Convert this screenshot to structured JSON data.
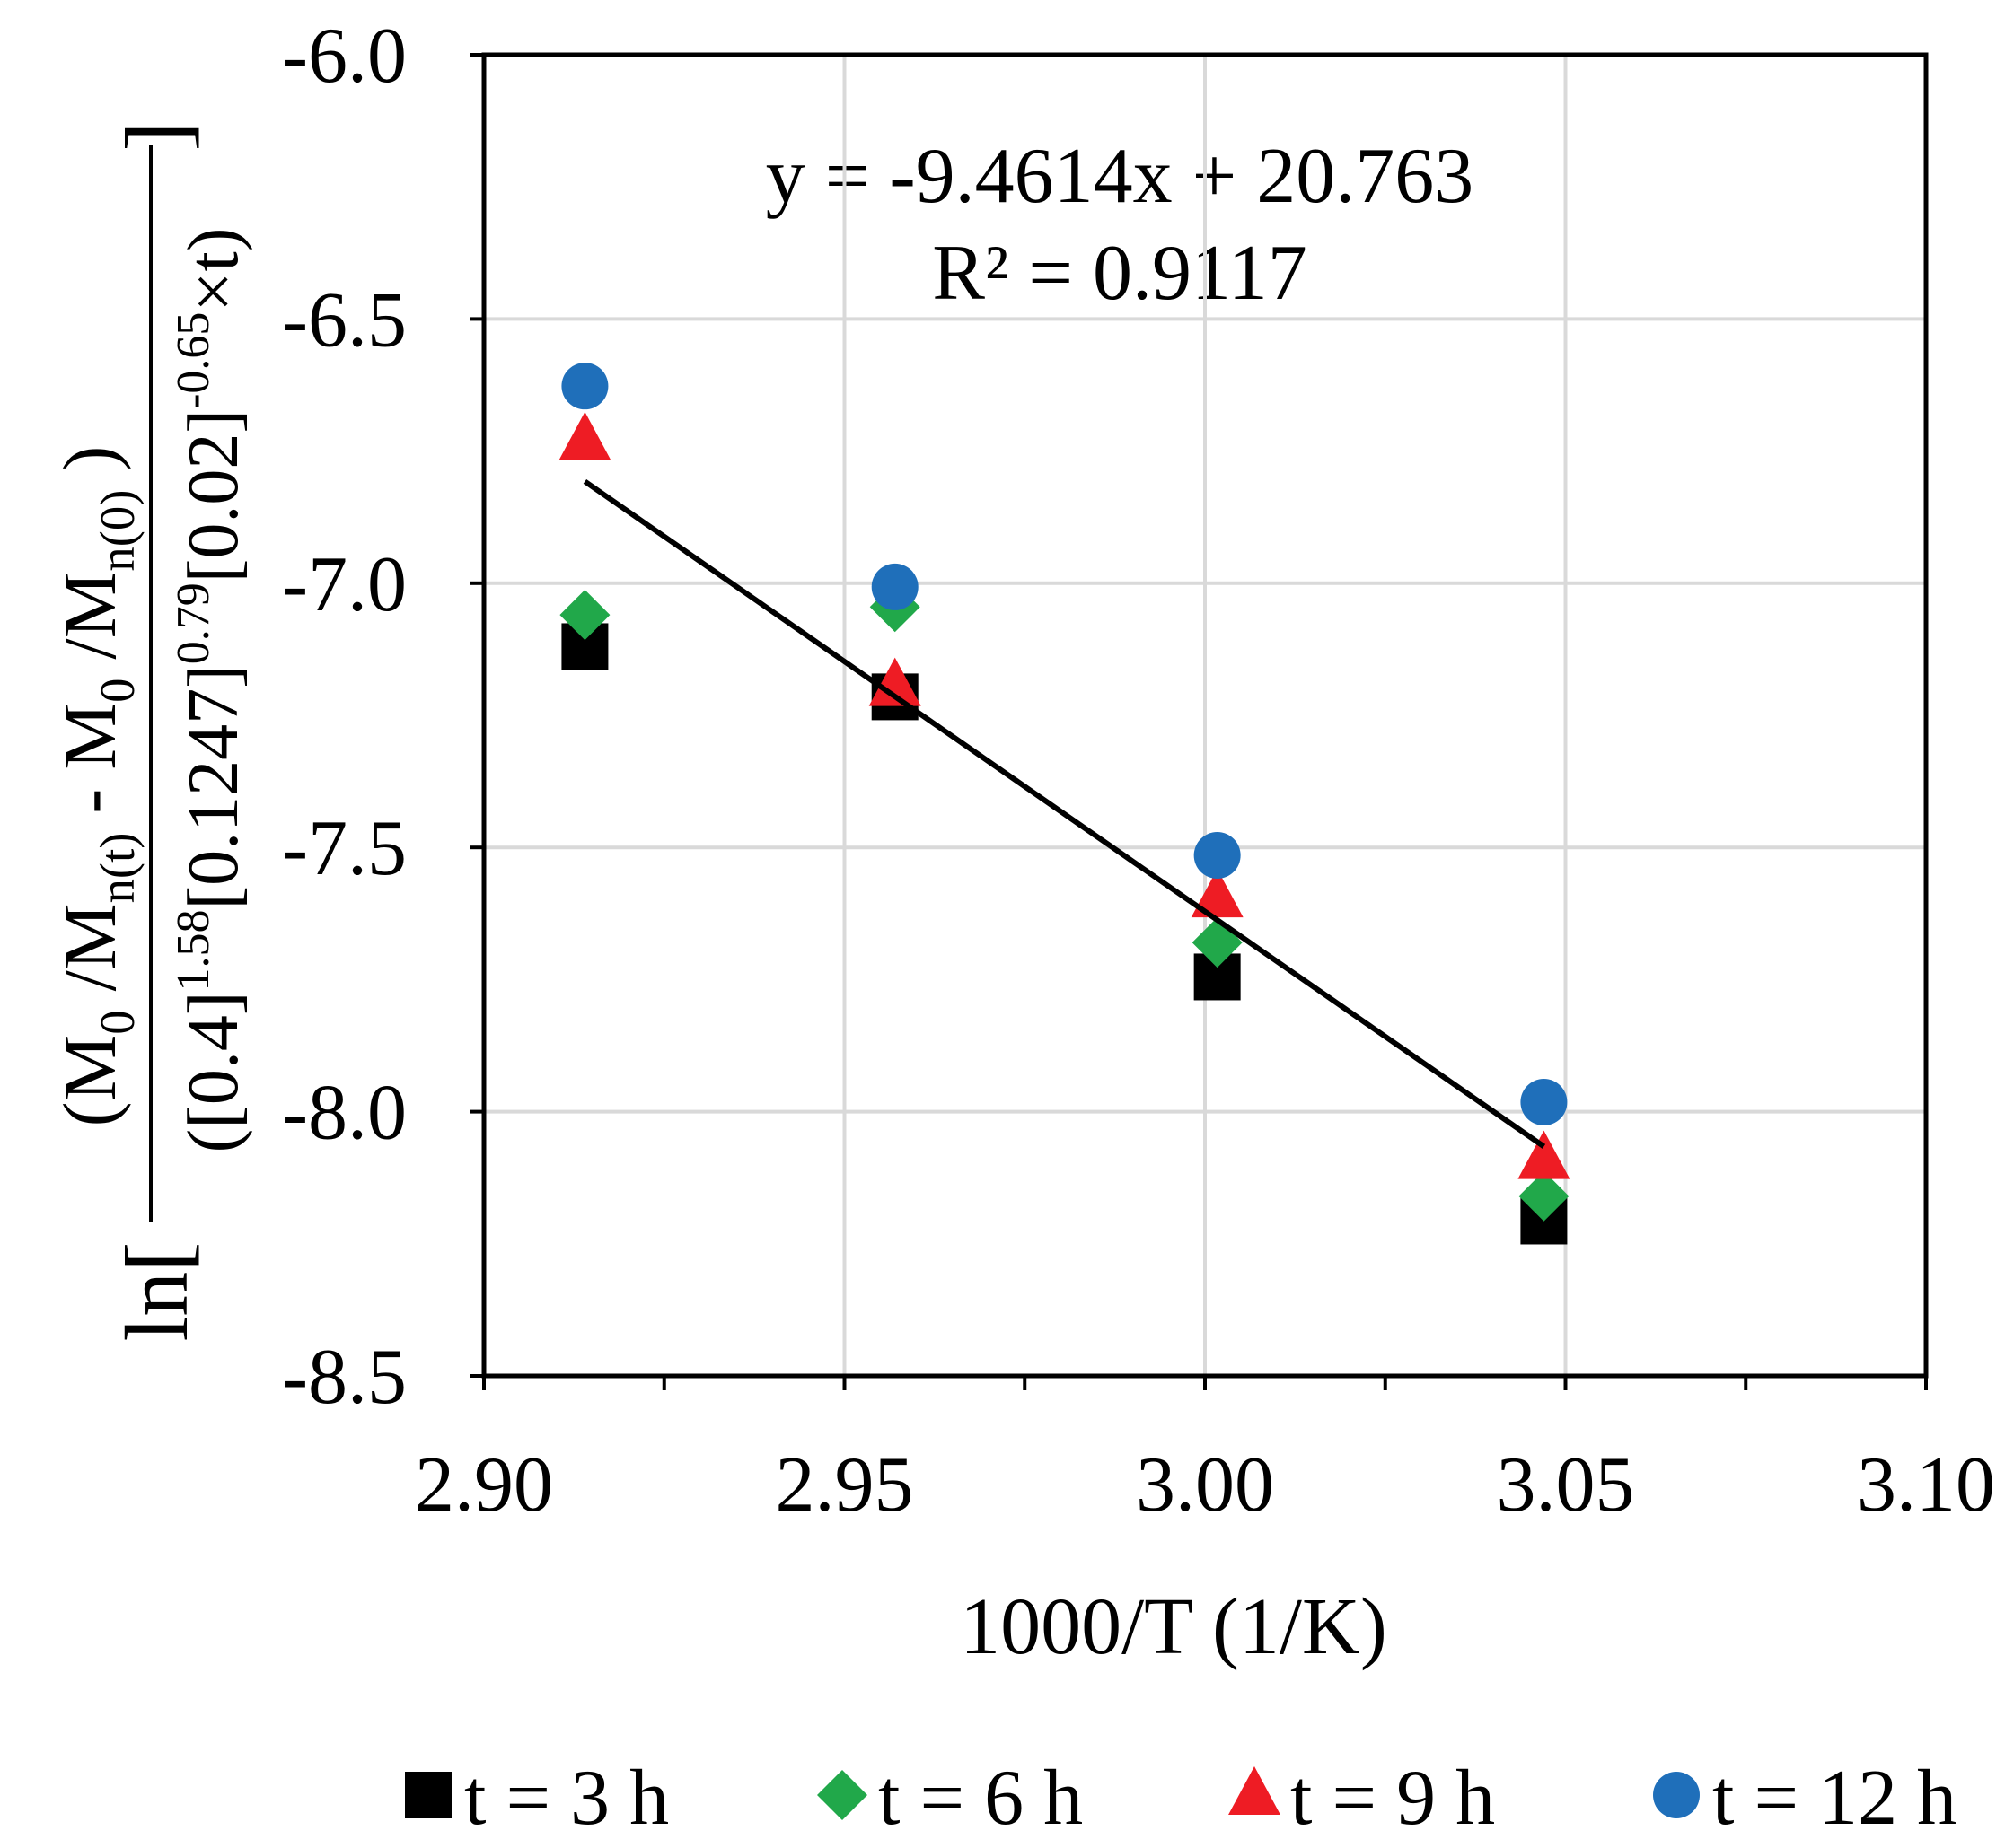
{
  "chart_data": {
    "type": "scatter",
    "xlabel": "1000/T (1/K)",
    "ylabel": {
      "prefix": "ln[",
      "suffix": "]",
      "numerator": [
        {
          "text": "(M"
        },
        {
          "text": "0",
          "pos": "sub"
        },
        {
          "text": " /M"
        },
        {
          "text": "n(t)",
          "pos": "sub"
        },
        {
          "text": " - M"
        },
        {
          "text": "0",
          "pos": "sub"
        },
        {
          "text": " /M"
        },
        {
          "text": "n(0)",
          "pos": "sub"
        },
        {
          "text": " )"
        }
      ],
      "denominator": [
        {
          "text": "([0.4]"
        },
        {
          "text": "1.58",
          "pos": "sup"
        },
        {
          "text": "[0.1247]"
        },
        {
          "text": "0.79",
          "pos": "sup"
        },
        {
          "text": "[0.02]"
        },
        {
          "text": "-0.65",
          "pos": "sup"
        },
        {
          "text": "×t)"
        }
      ]
    },
    "x": [
      2.914,
      2.957,
      3.0017,
      3.047
    ],
    "series": [
      {
        "name": "t = 3 h",
        "marker": "square",
        "color": "#000000",
        "values": [
          -7.12,
          -7.215,
          -7.745,
          -8.207
        ]
      },
      {
        "name": "t = 6 h",
        "marker": "diamond",
        "color": "#21a84a",
        "values": [
          -7.06,
          -7.045,
          -7.68,
          -8.16
        ]
      },
      {
        "name": "t = 9 h",
        "marker": "triangle",
        "color": "#ee1c24",
        "values": [
          -6.73,
          -7.195,
          -7.595,
          -8.09
        ]
      },
      {
        "name": "t = 12 h",
        "marker": "circle",
        "color": "#1f6fba",
        "values": [
          -6.627,
          -7.007,
          -7.515,
          -7.982
        ]
      }
    ],
    "trendline": {
      "slope": -9.4614,
      "intercept": 20.763,
      "color": "#000000",
      "equation": "y = -9.4614x + 20.763",
      "r2_label": "R² = 0.9117"
    },
    "xlim": [
      2.9,
      3.1
    ],
    "ylim": [
      -8.5,
      -6.0
    ],
    "xticks": [
      {
        "value": 2.9,
        "label": "2.90"
      },
      2.95,
      {
        "value": 3.0,
        "label": "3.00"
      },
      3.05,
      {
        "value": 3.1,
        "label": "3.10"
      }
    ],
    "xminor_ticks": [
      2.925,
      2.975,
      3.025,
      3.075
    ],
    "yticks": [
      {
        "value": -8.5,
        "label": "-8.5"
      },
      {
        "value": -8.0,
        "label": "-8.0"
      },
      {
        "value": -7.5,
        "label": "-7.5"
      },
      {
        "value": -7.0,
        "label": "-7.0"
      },
      {
        "value": -6.5,
        "label": "-6.5"
      },
      {
        "value": -6.0,
        "label": "-6.0"
      }
    ],
    "grid": true,
    "legend": "bottom"
  }
}
